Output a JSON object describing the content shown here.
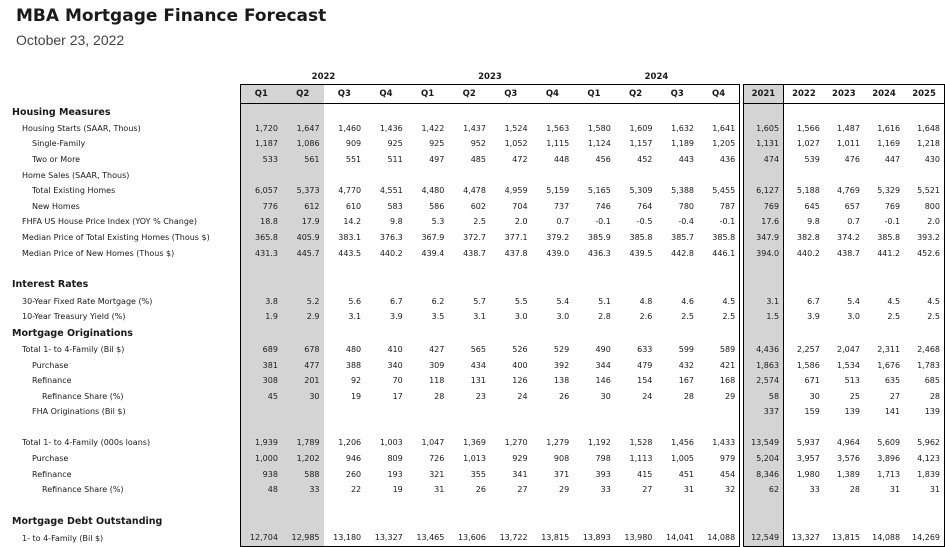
{
  "header": {
    "title": "MBA Mortgage Finance Forecast",
    "date": "October 23, 2022"
  },
  "year_groups": [
    "2022",
    "2023",
    "2024"
  ],
  "quarters": [
    "Q1",
    "Q2",
    "Q3",
    "Q4",
    "Q1",
    "Q2",
    "Q3",
    "Q4",
    "Q1",
    "Q2",
    "Q3",
    "Q4"
  ],
  "annual_years": [
    "2021",
    "2022",
    "2023",
    "2024",
    "2025"
  ],
  "rows": [
    {
      "type": "section",
      "label": "Housing Measures"
    },
    {
      "label": "Housing Starts (SAAR, Thous)",
      "indent": 1,
      "q": [
        "1,720",
        "1,647",
        "1,460",
        "1,436",
        "1,422",
        "1,437",
        "1,524",
        "1,563",
        "1,580",
        "1,609",
        "1,632",
        "1,641"
      ],
      "a": [
        "1,605",
        "1,566",
        "1,487",
        "1,616",
        "1,648"
      ]
    },
    {
      "label": "Single-Family",
      "indent": 2,
      "q": [
        "1,187",
        "1,086",
        "909",
        "925",
        "925",
        "952",
        "1,052",
        "1,115",
        "1,124",
        "1,157",
        "1,189",
        "1,205"
      ],
      "a": [
        "1,131",
        "1,027",
        "1,011",
        "1,169",
        "1,218"
      ]
    },
    {
      "label": "Two or More",
      "indent": 2,
      "q": [
        "533",
        "561",
        "551",
        "511",
        "497",
        "485",
        "472",
        "448",
        "456",
        "452",
        "443",
        "436"
      ],
      "a": [
        "474",
        "539",
        "476",
        "447",
        "430"
      ]
    },
    {
      "label": "Home Sales (SAAR, Thous)",
      "indent": 1,
      "q": [
        "",
        "",
        "",
        "",
        "",
        "",
        "",
        "",
        "",
        "",
        "",
        ""
      ],
      "a": [
        "",
        "",
        "",
        "",
        ""
      ]
    },
    {
      "label": "Total Existing Homes",
      "indent": 2,
      "q": [
        "6,057",
        "5,373",
        "4,770",
        "4,551",
        "4,480",
        "4,478",
        "4,959",
        "5,159",
        "5,165",
        "5,309",
        "5,388",
        "5,455"
      ],
      "a": [
        "6,127",
        "5,188",
        "4,769",
        "5,329",
        "5,521"
      ]
    },
    {
      "label": "New Homes",
      "indent": 2,
      "q": [
        "776",
        "612",
        "610",
        "583",
        "586",
        "602",
        "704",
        "737",
        "746",
        "764",
        "780",
        "787"
      ],
      "a": [
        "769",
        "645",
        "657",
        "769",
        "800"
      ]
    },
    {
      "label": "FHFA US House Price Index (YOY % Change)",
      "indent": 1,
      "q": [
        "18.8",
        "17.9",
        "14.2",
        "9.8",
        "5.3",
        "2.5",
        "2.0",
        "0.7",
        "-0.1",
        "-0.5",
        "-0.4",
        "-0.1"
      ],
      "a": [
        "17.6",
        "9.8",
        "0.7",
        "-0.1",
        "2.0"
      ]
    },
    {
      "label": "Median Price of Total Existing Homes (Thous $)",
      "indent": 1,
      "q": [
        "365.8",
        "405.9",
        "383.1",
        "376.3",
        "367.9",
        "372.7",
        "377.1",
        "379.2",
        "385.9",
        "385.8",
        "385.7",
        "385.8"
      ],
      "a": [
        "347.9",
        "382.8",
        "374.2",
        "385.8",
        "393.2"
      ]
    },
    {
      "label": "Median Price of New Homes (Thous $)",
      "indent": 1,
      "q": [
        "431.3",
        "445.7",
        "443.5",
        "440.2",
        "439.4",
        "438.7",
        "437.8",
        "439.0",
        "436.3",
        "439.5",
        "442.8",
        "446.1"
      ],
      "a": [
        "394.0",
        "440.2",
        "438.7",
        "441.2",
        "452.6"
      ]
    },
    {
      "type": "blank"
    },
    {
      "type": "section",
      "label": "Interest Rates"
    },
    {
      "label": "30-Year Fixed Rate Mortgage (%)",
      "indent": 1,
      "q": [
        "3.8",
        "5.2",
        "5.6",
        "6.7",
        "6.2",
        "5.7",
        "5.5",
        "5.4",
        "5.1",
        "4.8",
        "4.6",
        "4.5"
      ],
      "a": [
        "3.1",
        "6.7",
        "5.4",
        "4.5",
        "4.5"
      ]
    },
    {
      "label": "10-Year Treasury Yield (%)",
      "indent": 1,
      "q": [
        "1.9",
        "2.9",
        "3.1",
        "3.9",
        "3.5",
        "3.1",
        "3.0",
        "3.0",
        "2.8",
        "2.6",
        "2.5",
        "2.5"
      ],
      "a": [
        "1.5",
        "3.9",
        "3.0",
        "2.5",
        "2.5"
      ]
    },
    {
      "type": "section",
      "label": "Mortgage Originations"
    },
    {
      "label": "Total 1- to 4-Family (Bil $)",
      "indent": 1,
      "q": [
        "689",
        "678",
        "480",
        "410",
        "427",
        "565",
        "526",
        "529",
        "490",
        "633",
        "599",
        "589"
      ],
      "a": [
        "4,436",
        "2,257",
        "2,047",
        "2,311",
        "2,468"
      ]
    },
    {
      "label": "Purchase",
      "indent": 2,
      "q": [
        "381",
        "477",
        "388",
        "340",
        "309",
        "434",
        "400",
        "392",
        "344",
        "479",
        "432",
        "421"
      ],
      "a": [
        "1,863",
        "1,586",
        "1,534",
        "1,676",
        "1,783"
      ]
    },
    {
      "label": "Refinance",
      "indent": 2,
      "q": [
        "308",
        "201",
        "92",
        "70",
        "118",
        "131",
        "126",
        "138",
        "146",
        "154",
        "167",
        "168"
      ],
      "a": [
        "2,574",
        "671",
        "513",
        "635",
        "685"
      ]
    },
    {
      "label": "Refinance Share (%)",
      "indent": 3,
      "q": [
        "45",
        "30",
        "19",
        "17",
        "28",
        "23",
        "24",
        "26",
        "30",
        "24",
        "28",
        "29"
      ],
      "a": [
        "58",
        "30",
        "25",
        "27",
        "28"
      ]
    },
    {
      "label": "FHA Originations (Bil $)",
      "indent": 2,
      "q": [
        "",
        "",
        "",
        "",
        "",
        "",
        "",
        "",
        "",
        "",
        "",
        ""
      ],
      "a": [
        "337",
        "159",
        "139",
        "141",
        "139"
      ]
    },
    {
      "type": "blank"
    },
    {
      "label": "Total 1- to 4-Family (000s loans)",
      "indent": 1,
      "q": [
        "1,939",
        "1,789",
        "1,206",
        "1,003",
        "1,047",
        "1,369",
        "1,270",
        "1,279",
        "1,192",
        "1,528",
        "1,456",
        "1,433"
      ],
      "a": [
        "13,549",
        "5,937",
        "4,964",
        "5,609",
        "5,962"
      ]
    },
    {
      "label": "Purchase",
      "indent": 2,
      "q": [
        "1,000",
        "1,202",
        "946",
        "809",
        "726",
        "1,013",
        "929",
        "908",
        "798",
        "1,113",
        "1,005",
        "979"
      ],
      "a": [
        "5,204",
        "3,957",
        "3,576",
        "3,896",
        "4,123"
      ]
    },
    {
      "label": "Refinance",
      "indent": 2,
      "q": [
        "938",
        "588",
        "260",
        "193",
        "321",
        "355",
        "341",
        "371",
        "393",
        "415",
        "451",
        "454"
      ],
      "a": [
        "8,346",
        "1,980",
        "1,389",
        "1,713",
        "1,839"
      ]
    },
    {
      "label": "Refinance Share (%)",
      "indent": 3,
      "q": [
        "48",
        "33",
        "22",
        "19",
        "31",
        "26",
        "27",
        "29",
        "33",
        "27",
        "31",
        "32"
      ],
      "a": [
        "62",
        "33",
        "28",
        "31",
        "31"
      ]
    },
    {
      "type": "blank"
    },
    {
      "type": "section",
      "label": "Mortgage Debt Outstanding"
    },
    {
      "label": "1- to 4-Family (Bil $)",
      "indent": 1,
      "q": [
        "12,704",
        "12,985",
        "13,180",
        "13,327",
        "13,465",
        "13,606",
        "13,722",
        "13,815",
        "13,893",
        "13,980",
        "14,041",
        "14,088"
      ],
      "a": [
        "12,549",
        "13,327",
        "13,815",
        "14,088",
        "14,269"
      ]
    }
  ]
}
